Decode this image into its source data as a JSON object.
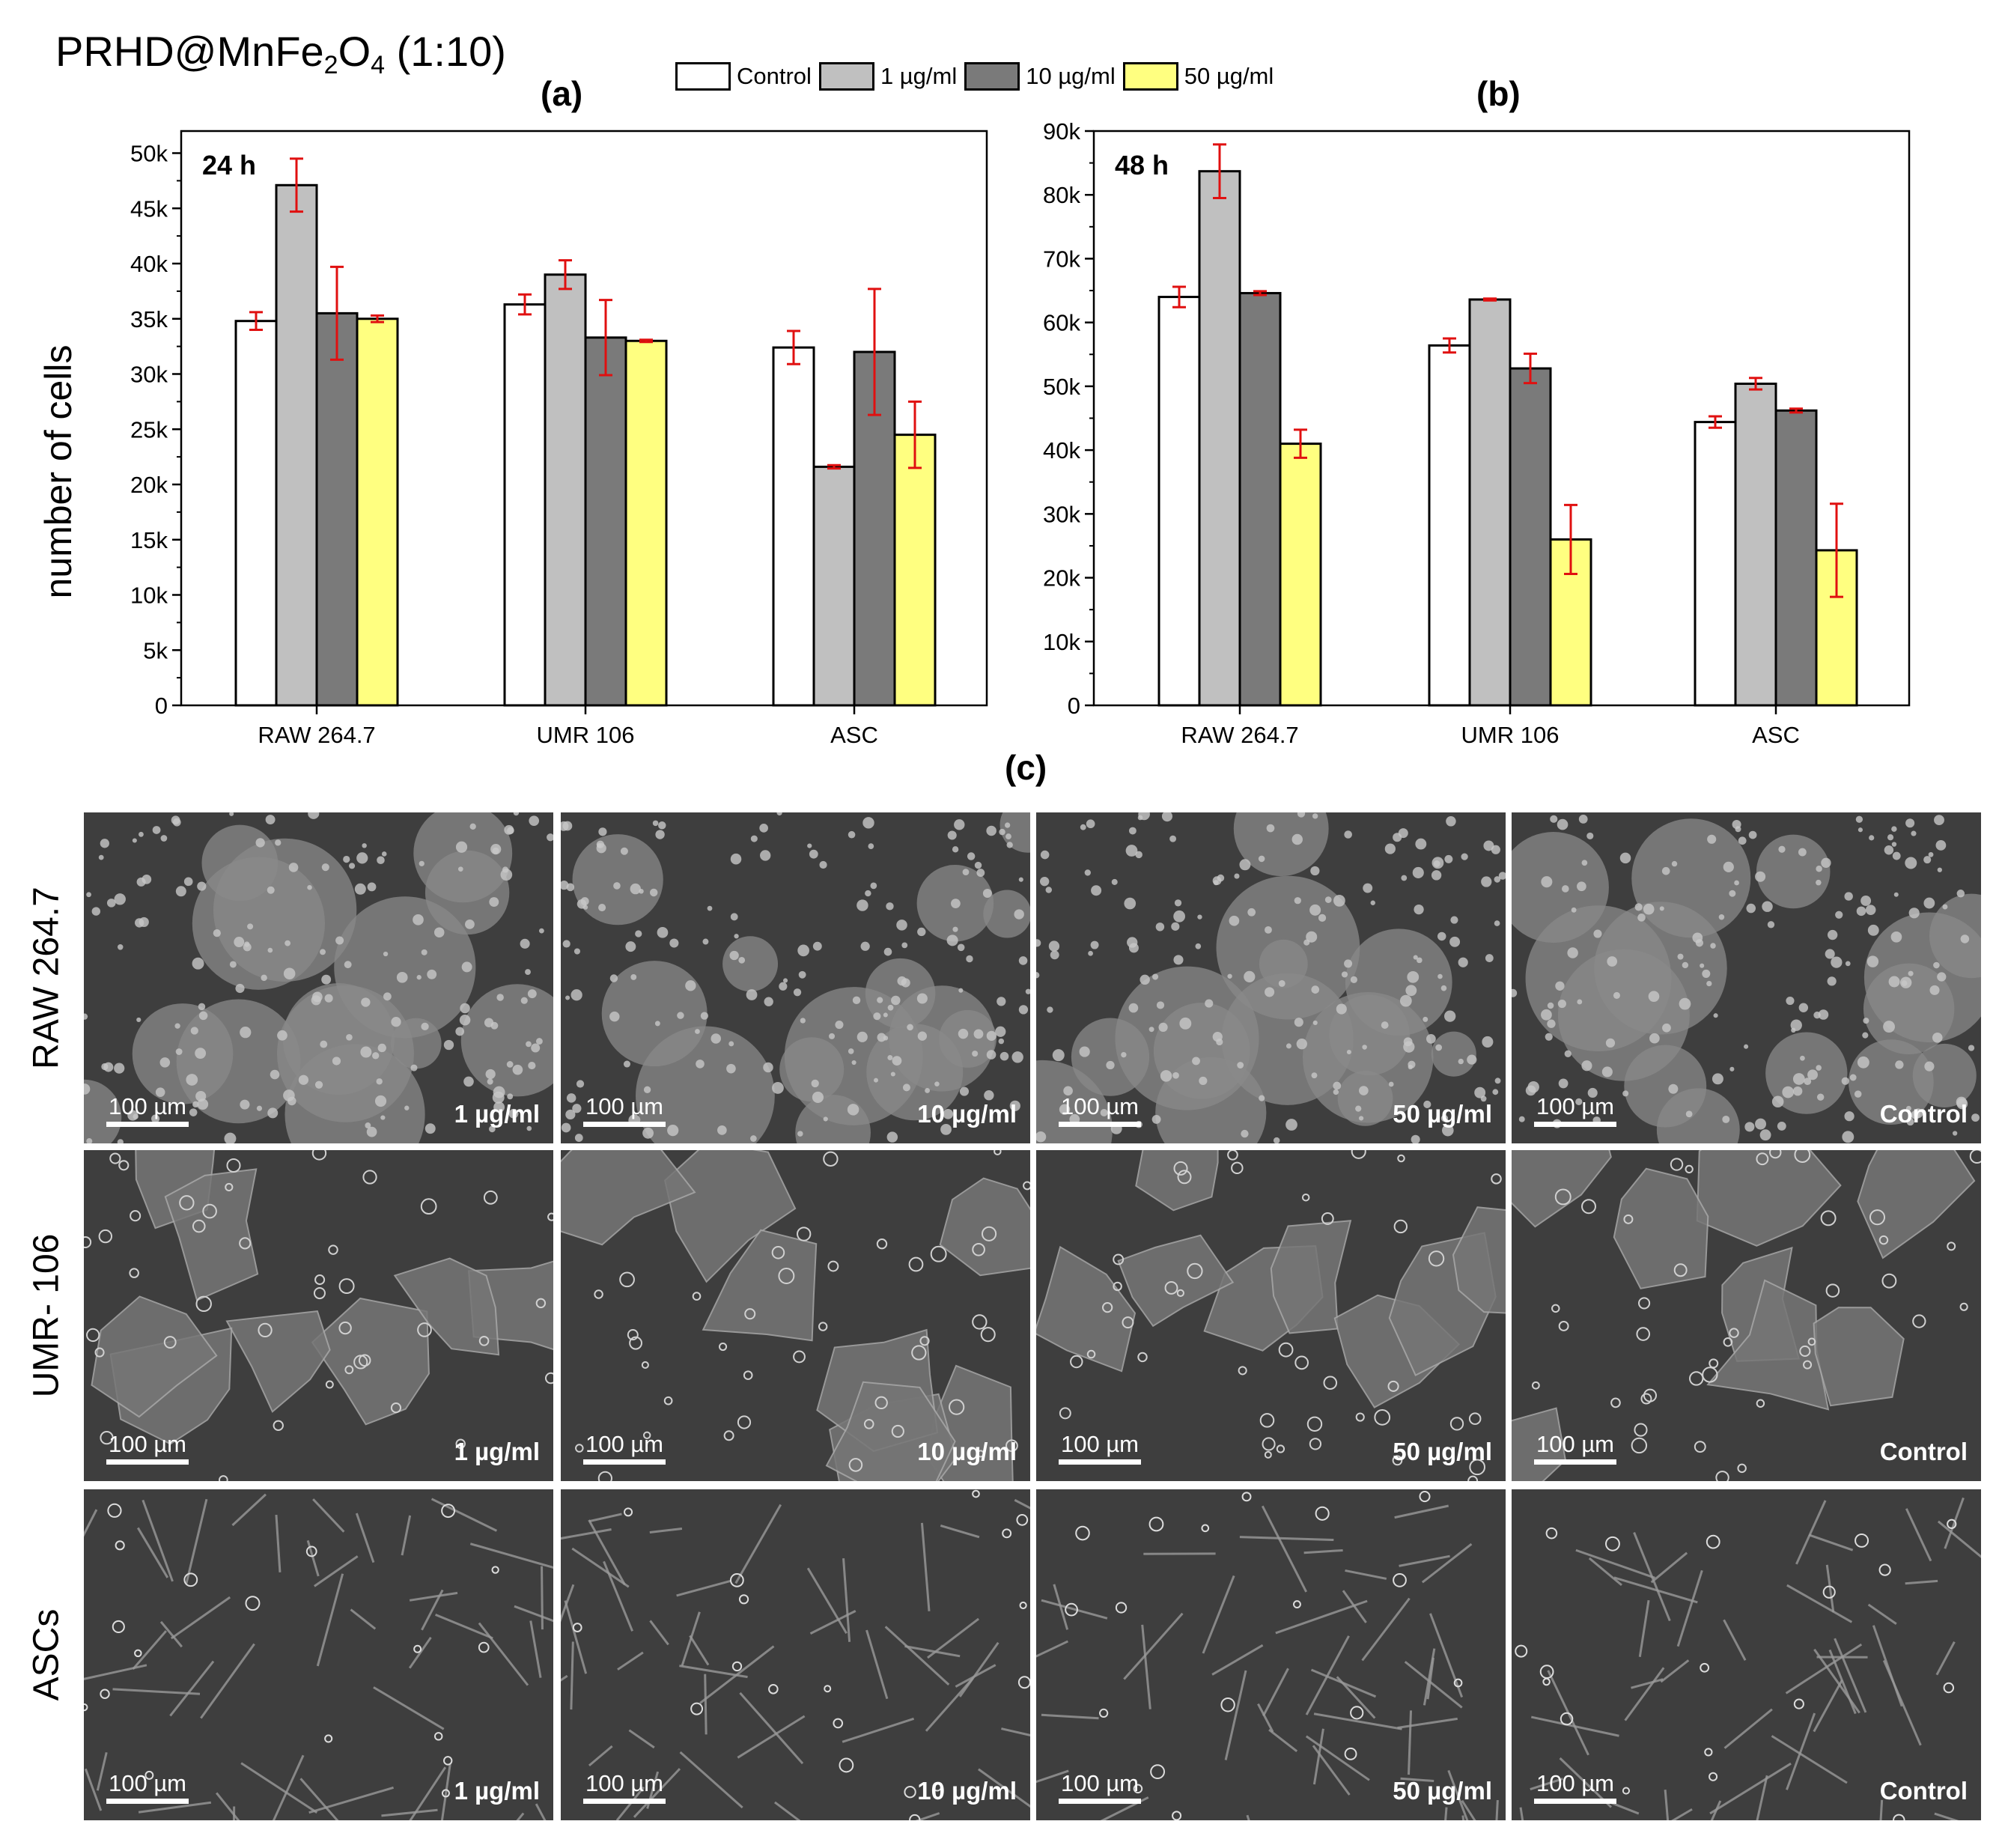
{
  "figure": {
    "title_main": "PRHD@MnFe",
    "title_sub1": "2",
    "title_mid": "O",
    "title_sub2": "4",
    "title_tail": " (1:10)",
    "panel_c_label": "(c)"
  },
  "legend": [
    {
      "label": "Control",
      "color": "#ffffff"
    },
    {
      "label": "1  µg/ml",
      "color": "#c0c0c0"
    },
    {
      "label": "10 µg/ml",
      "color": "#7a7a7a"
    },
    {
      "label": "50 µg/ml",
      "color": "#ffff80"
    }
  ],
  "ylabel": "number of cells",
  "chart_data": [
    {
      "type": "bar",
      "panel": "(a)",
      "annotation": "24 h",
      "categories": [
        "RAW 264.7",
        "UMR 106",
        "ASC"
      ],
      "ylim": [
        0,
        52000
      ],
      "yticks": [
        0,
        5000,
        10000,
        15000,
        20000,
        25000,
        30000,
        35000,
        40000,
        45000,
        50000
      ],
      "ytick_labels": [
        "0",
        "5k",
        "10k",
        "15k",
        "20k",
        "25k",
        "30k",
        "35k",
        "40k",
        "45k",
        "50k"
      ],
      "series": [
        {
          "name": "Control",
          "color": "#ffffff",
          "values": [
            34800,
            36300,
            32400
          ],
          "errors": [
            800,
            900,
            1500
          ]
        },
        {
          "name": "1  µg/ml",
          "color": "#c0c0c0",
          "values": [
            47100,
            39000,
            21600
          ],
          "errors": [
            2400,
            1300,
            150
          ]
        },
        {
          "name": "10 µg/ml",
          "color": "#7a7a7a",
          "values": [
            35500,
            33300,
            32000
          ],
          "errors": [
            4200,
            3400,
            5700
          ]
        },
        {
          "name": "50 µg/ml",
          "color": "#ffff80",
          "values": [
            35000,
            33000,
            24500
          ],
          "errors": [
            300,
            100,
            3000
          ]
        }
      ]
    },
    {
      "type": "bar",
      "panel": "(b)",
      "annotation": "48 h",
      "categories": [
        "RAW 264.7",
        "UMR 106",
        "ASC"
      ],
      "ylim": [
        0,
        90000
      ],
      "yticks": [
        0,
        10000,
        20000,
        30000,
        40000,
        50000,
        60000,
        70000,
        80000,
        90000
      ],
      "ytick_labels": [
        "0",
        "10k",
        "20k",
        "30k",
        "40k",
        "50k",
        "60k",
        "70k",
        "80k",
        "90k"
      ],
      "series": [
        {
          "name": "Control",
          "color": "#ffffff",
          "values": [
            64000,
            56400,
            44400
          ],
          "errors": [
            1600,
            1100,
            900
          ]
        },
        {
          "name": "1  µg/ml",
          "color": "#c0c0c0",
          "values": [
            83700,
            63600,
            50400
          ],
          "errors": [
            4200,
            150,
            900
          ]
        },
        {
          "name": "10 µg/ml",
          "color": "#7a7a7a",
          "values": [
            64600,
            52800,
            46200
          ],
          "errors": [
            300,
            2300,
            300
          ]
        },
        {
          "name": "50 µg/ml",
          "color": "#ffff80",
          "values": [
            41000,
            26000,
            24300
          ],
          "errors": [
            2200,
            5400,
            7300
          ]
        }
      ]
    }
  ],
  "micrographs": {
    "rows": [
      {
        "label": "RAW 264.7",
        "style": "raw"
      },
      {
        "label": "UMR- 106",
        "style": "umr"
      },
      {
        "label": "ASCs",
        "style": "asc"
      }
    ],
    "columns": [
      "1 µg/ml",
      "10 µg/ml",
      "50 µg/ml",
      "Control"
    ],
    "scale_bar": "100 µm"
  }
}
